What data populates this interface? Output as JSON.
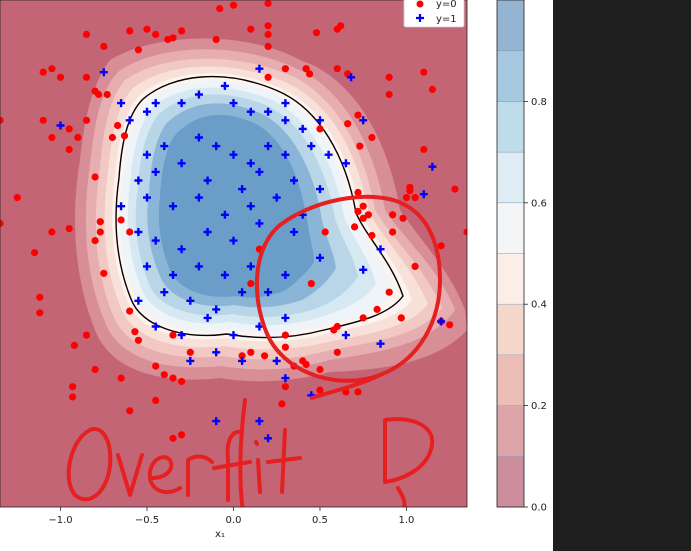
{
  "chart_data": {
    "type": "scatter",
    "title": "",
    "xlabel": "x₁",
    "ylabel": "",
    "xlim": [
      -1.35,
      1.35
    ],
    "ylim": [
      -1.3,
      1.65
    ],
    "x_ticks": [
      "−1.0",
      "−0.5",
      "0.0",
      "0.5",
      "1.0"
    ],
    "legend": {
      "placement": "top-right",
      "entries": [
        "y=0",
        "y=1"
      ]
    },
    "background": {
      "type": "filled-contour",
      "colormap": "RdBu",
      "levels": [
        0.0,
        0.1,
        0.2,
        0.3,
        0.4,
        0.5,
        0.6,
        0.7,
        0.8,
        0.9,
        1.0
      ],
      "decision_boundary_level": 0.5
    },
    "colorbar": {
      "range": [
        0,
        1
      ],
      "ticks": [
        "0.0",
        "0.2",
        "0.4",
        "0.6",
        "0.8"
      ],
      "level_colors": [
        "#cc8e9c",
        "#dba5a9",
        "#ebbdb7",
        "#f6d7cb",
        "#fbeee8",
        "#f3f5f7",
        "#dfecf3",
        "#bfdcea",
        "#a7c9e0",
        "#95b4d1"
      ]
    },
    "series": [
      {
        "name": "y=0",
        "marker": "circle",
        "color": "#ff0000",
        "points": [
          [
            -0.08,
            1.6
          ],
          [
            0.0,
            1.62
          ],
          [
            0.2,
            1.63
          ],
          [
            -0.85,
            1.45
          ],
          [
            0.2,
            1.5
          ],
          [
            0.1,
            1.48
          ],
          [
            -0.6,
            1.47
          ],
          [
            -0.5,
            1.48
          ],
          [
            -0.45,
            1.45
          ],
          [
            -0.3,
            1.47
          ],
          [
            -0.35,
            1.43
          ],
          [
            -0.38,
            1.42
          ],
          [
            -0.1,
            1.42
          ],
          [
            0.2,
            1.45
          ],
          [
            0.2,
            1.38
          ],
          [
            0.48,
            1.46
          ],
          [
            0.6,
            1.48
          ],
          [
            0.62,
            1.5
          ],
          [
            -0.75,
            1.38
          ],
          [
            -0.55,
            1.36
          ],
          [
            -0.85,
            1.2
          ],
          [
            -1.05,
            1.25
          ],
          [
            -1.1,
            1.23
          ],
          [
            -1.0,
            1.2
          ],
          [
            -0.8,
            1.12
          ],
          [
            -0.78,
            1.1
          ],
          [
            -0.73,
            1.1
          ],
          [
            0.3,
            1.25
          ],
          [
            0.2,
            1.2
          ],
          [
            0.42,
            1.25
          ],
          [
            0.44,
            1.22
          ],
          [
            0.6,
            1.25
          ],
          [
            0.66,
            1.22
          ],
          [
            0.9,
            1.2
          ],
          [
            1.1,
            1.23
          ],
          [
            1.15,
            1.13
          ],
          [
            0.9,
            1.1
          ],
          [
            -1.35,
            0.95
          ],
          [
            -1.1,
            0.95
          ],
          [
            -0.85,
            0.95
          ],
          [
            -0.95,
            0.9
          ],
          [
            -1.05,
            0.85
          ],
          [
            -0.9,
            0.85
          ],
          [
            -0.95,
            0.78
          ],
          [
            -0.67,
            0.92
          ],
          [
            -0.7,
            0.85
          ],
          [
            -0.63,
            0.86
          ],
          [
            0.66,
            0.93
          ],
          [
            0.72,
            0.98
          ],
          [
            1.1,
            0.78
          ],
          [
            0.8,
            0.85
          ],
          [
            0.5,
            0.9
          ],
          [
            0.73,
            0.8
          ],
          [
            -0.8,
            0.62
          ],
          [
            -1.25,
            0.5
          ],
          [
            -0.6,
            0.3
          ],
          [
            -0.65,
            0.37
          ],
          [
            -0.77,
            0.36
          ],
          [
            -0.77,
            0.3
          ],
          [
            -0.8,
            0.25
          ],
          [
            -1.05,
            0.3
          ],
          [
            -0.95,
            0.32
          ],
          [
            -1.35,
            0.35
          ],
          [
            -1.15,
            0.18
          ],
          [
            -0.75,
            0.06
          ],
          [
            -0.6,
            -0.16
          ],
          [
            -1.12,
            -0.08
          ],
          [
            -1.12,
            -0.17
          ],
          [
            -0.85,
            -0.3
          ],
          [
            -0.92,
            -0.36
          ],
          [
            -0.55,
            -0.33
          ],
          [
            -0.57,
            -0.28
          ],
          [
            -0.35,
            -0.3
          ],
          [
            -0.25,
            -0.4
          ],
          [
            -0.45,
            -0.48
          ],
          [
            -0.4,
            -0.53
          ],
          [
            -0.35,
            -0.55
          ],
          [
            -0.3,
            -0.57
          ],
          [
            -0.8,
            -0.5
          ],
          [
            -0.65,
            -0.55
          ],
          [
            -0.35,
            -0.9
          ],
          [
            -0.3,
            -0.88
          ],
          [
            -0.6,
            -0.74
          ],
          [
            -0.93,
            -0.6
          ],
          [
            -0.93,
            -0.66
          ],
          [
            -0.45,
            -0.68
          ],
          [
            0.05,
            -0.42
          ],
          [
            0.18,
            -0.42
          ],
          [
            0.1,
            -0.4
          ],
          [
            0.15,
            0.2
          ],
          [
            0.1,
            0.0
          ],
          [
            0.3,
            -0.3
          ],
          [
            0.3,
            -0.37
          ],
          [
            0.4,
            -0.45
          ],
          [
            0.42,
            -0.47
          ],
          [
            0.35,
            -0.48
          ],
          [
            0.5,
            -0.5
          ],
          [
            0.6,
            -0.4
          ],
          [
            0.3,
            -0.6
          ],
          [
            0.28,
            -0.7
          ],
          [
            0.5,
            -0.62
          ],
          [
            0.65,
            -0.63
          ],
          [
            0.72,
            -0.63
          ],
          [
            0.6,
            -0.25
          ],
          [
            0.58,
            -0.27
          ],
          [
            0.75,
            -0.2
          ],
          [
            0.83,
            -0.15
          ],
          [
            0.9,
            -0.05
          ],
          [
            0.97,
            -0.2
          ],
          [
            1.05,
            0.1
          ],
          [
            0.53,
            0.3
          ],
          [
            0.7,
            0.33
          ],
          [
            0.8,
            0.28
          ],
          [
            0.75,
            0.38
          ],
          [
            0.78,
            0.4
          ],
          [
            0.75,
            0.45
          ],
          [
            0.92,
            0.3
          ],
          [
            0.98,
            0.38
          ],
          [
            1.0,
            0.5
          ],
          [
            1.02,
            0.54
          ],
          [
            1.02,
            0.56
          ],
          [
            1.05,
            0.5
          ],
          [
            1.2,
            0.22
          ],
          [
            1.2,
            -0.22
          ],
          [
            1.25,
            -0.24
          ],
          [
            1.35,
            0.3
          ],
          [
            1.28,
            0.55
          ],
          [
            0.92,
            0.4
          ],
          [
            0.72,
            0.53
          ],
          [
            0.72,
            0.42
          ],
          [
            0.45,
            0.0
          ]
        ]
      },
      {
        "name": "y=1",
        "marker": "plus",
        "color": "#0000ff",
        "points": [
          [
            -0.75,
            1.23
          ],
          [
            0.15,
            1.25
          ],
          [
            0.68,
            1.2
          ],
          [
            -1.0,
            0.92
          ],
          [
            -0.65,
            1.05
          ],
          [
            -0.6,
            0.95
          ],
          [
            -0.5,
            1.0
          ],
          [
            -0.45,
            1.05
          ],
          [
            -0.3,
            1.05
          ],
          [
            -0.2,
            1.1
          ],
          [
            -0.05,
            1.15
          ],
          [
            0.0,
            1.05
          ],
          [
            0.1,
            1.0
          ],
          [
            0.2,
            1.0
          ],
          [
            0.3,
            1.05
          ],
          [
            0.3,
            0.95
          ],
          [
            0.4,
            0.9
          ],
          [
            0.5,
            0.95
          ],
          [
            0.75,
            0.95
          ],
          [
            -0.5,
            0.75
          ],
          [
            -0.4,
            0.8
          ],
          [
            -0.2,
            0.85
          ],
          [
            -0.1,
            0.8
          ],
          [
            0.0,
            0.75
          ],
          [
            0.1,
            0.7
          ],
          [
            0.2,
            0.8
          ],
          [
            0.3,
            0.75
          ],
          [
            0.45,
            0.8
          ],
          [
            0.55,
            0.75
          ],
          [
            0.65,
            0.7
          ],
          [
            -0.55,
            0.6
          ],
          [
            -0.45,
            0.65
          ],
          [
            -0.3,
            0.7
          ],
          [
            -0.15,
            0.6
          ],
          [
            0.05,
            0.55
          ],
          [
            0.15,
            0.65
          ],
          [
            0.35,
            0.6
          ],
          [
            0.5,
            0.55
          ],
          [
            -0.65,
            0.45
          ],
          [
            -0.5,
            0.5
          ],
          [
            -0.35,
            0.45
          ],
          [
            -0.2,
            0.5
          ],
          [
            -0.05,
            0.4
          ],
          [
            0.1,
            0.45
          ],
          [
            0.25,
            0.5
          ],
          [
            0.4,
            0.4
          ],
          [
            -0.55,
            0.3
          ],
          [
            -0.45,
            0.25
          ],
          [
            -0.3,
            0.2
          ],
          [
            -0.15,
            0.3
          ],
          [
            0.0,
            0.25
          ],
          [
            0.15,
            0.35
          ],
          [
            0.35,
            0.3
          ],
          [
            -0.5,
            0.1
          ],
          [
            -0.35,
            0.05
          ],
          [
            -0.2,
            0.1
          ],
          [
            -0.05,
            0.05
          ],
          [
            0.1,
            0.1
          ],
          [
            0.3,
            0.05
          ],
          [
            0.5,
            0.15
          ],
          [
            -0.55,
            -0.1
          ],
          [
            -0.4,
            -0.05
          ],
          [
            -0.25,
            -0.1
          ],
          [
            -0.1,
            -0.15
          ],
          [
            0.05,
            -0.05
          ],
          [
            0.2,
            -0.05
          ],
          [
            -0.45,
            -0.25
          ],
          [
            -0.3,
            -0.3
          ],
          [
            -0.15,
            -0.2
          ],
          [
            0.0,
            -0.3
          ],
          [
            0.15,
            -0.25
          ],
          [
            0.3,
            -0.2
          ],
          [
            -0.25,
            -0.45
          ],
          [
            -0.1,
            -0.4
          ],
          [
            0.05,
            -0.45
          ],
          [
            0.25,
            -0.45
          ],
          [
            -0.1,
            -0.8
          ],
          [
            0.2,
            -0.9
          ],
          [
            0.65,
            -0.3
          ],
          [
            0.85,
            -0.35
          ],
          [
            0.75,
            0.08
          ],
          [
            0.85,
            0.2
          ],
          [
            1.1,
            0.52
          ],
          [
            1.15,
            0.68
          ],
          [
            1.2,
            -0.22
          ],
          [
            0.3,
            -0.55
          ],
          [
            0.45,
            -0.65
          ],
          [
            0.15,
            -0.8
          ]
        ]
      }
    ],
    "annotation": {
      "text": "OverfitD",
      "style": "red handwritten ink",
      "circled_region": "lower-right near x=0.5..1.1, y=-0.6..0.5"
    }
  }
}
